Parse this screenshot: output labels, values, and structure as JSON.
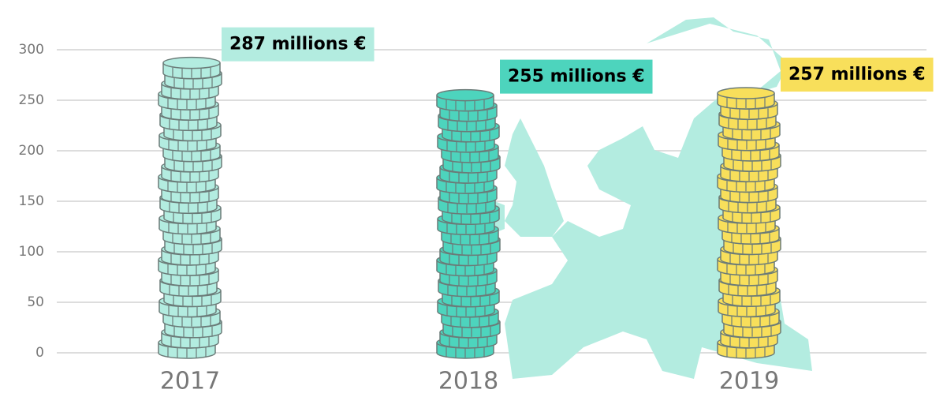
{
  "chart_data": {
    "type": "coin-stack",
    "categories": [
      "2017",
      "2018",
      "2019"
    ],
    "values": [
      287,
      255,
      257
    ],
    "value_labels": [
      "287 millions €",
      "255 millions €",
      "257 millions €"
    ],
    "colors": [
      "#b3ece0",
      "#4dd4bd",
      "#f8df5b"
    ],
    "ylim": [
      0,
      300
    ],
    "yticks": [
      0,
      50,
      100,
      150,
      200,
      250,
      300
    ],
    "grid": true
  }
}
